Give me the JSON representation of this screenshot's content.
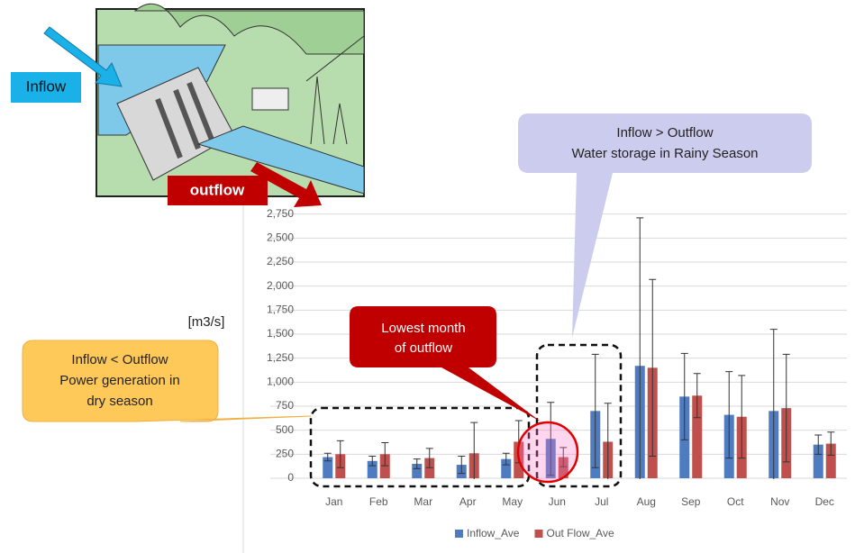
{
  "chart_data": {
    "type": "bar",
    "y_axis_label": "[m3/s]",
    "categories": [
      "Jan",
      "Feb",
      "Mar",
      "Apr",
      "May",
      "Jun",
      "Jul",
      "Aug",
      "Sep",
      "Oct",
      "Nov",
      "Dec"
    ],
    "series": [
      {
        "name": "Inflow_Ave",
        "color": "#4f7cc0",
        "values": [
          220,
          180,
          150,
          140,
          200,
          410,
          700,
          1170,
          850,
          660,
          700,
          350
        ],
        "errors": [
          40,
          50,
          50,
          90,
          60,
          380,
          590,
          1540,
          450,
          450,
          850,
          100
        ]
      },
      {
        "name": "Out Flow_Ave",
        "color": "#c0504d",
        "values": [
          250,
          250,
          210,
          260,
          380,
          220,
          380,
          1150,
          860,
          640,
          730,
          360
        ],
        "errors": [
          140,
          120,
          100,
          320,
          220,
          100,
          400,
          920,
          230,
          430,
          560,
          120
        ]
      }
    ],
    "ylim": [
      0,
      3000
    ],
    "yticks": [
      0,
      250,
      500,
      750,
      {
        "value": 1000,
        "label": "1,000"
      },
      {
        "value": 1250,
        "label": "1,250"
      },
      {
        "value": 1500,
        "label": "1,500"
      },
      {
        "value": 1750,
        "label": "1,750"
      },
      {
        "value": 2000,
        "label": "2,000"
      },
      {
        "value": 2250,
        "label": "2,250"
      },
      {
        "value": 2500,
        "label": "2,500"
      },
      {
        "value": 2750,
        "label": "2,750"
      }
    ],
    "grid": true,
    "legend": "bottom",
    "annotations": {
      "inflow_label": "Inflow",
      "outflow_label": "outflow",
      "dry_season": [
        "Inflow < Outflow",
        "Power generation in",
        "dry season"
      ],
      "lowest": [
        "Lowest month",
        "of outflow"
      ],
      "rainy_season": [
        "Inflow > Outflow",
        "Water storage in Rainy Season"
      ]
    }
  }
}
